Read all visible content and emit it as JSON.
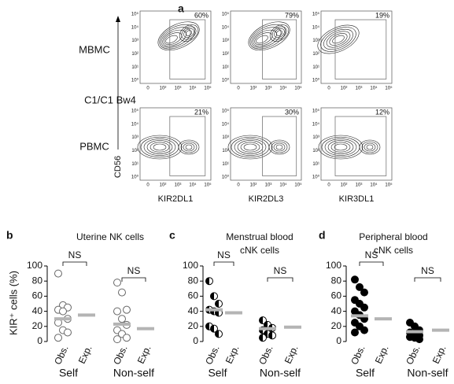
{
  "panel_a": {
    "label": "a",
    "rows": [
      "MBMC",
      "PBMC"
    ],
    "row_note": "C1/C1 Bw4",
    "columns": [
      "KIR2DL1",
      "KIR2DL3",
      "KIR3DL1"
    ],
    "y_axis": "CD56",
    "gates": [
      [
        "60%",
        "79%",
        "19%"
      ],
      [
        "21%",
        "30%",
        "12%"
      ]
    ],
    "xticks": [
      "0",
      "10²",
      "10³",
      "10⁴",
      "10⁵"
    ],
    "yticks": [
      "10⁵",
      "10⁴",
      "10³",
      "10²",
      "10¹",
      "10⁰"
    ]
  },
  "chart_data": [
    {
      "type": "dot",
      "label": "b",
      "title": [
        "Uterine NK cells"
      ],
      "ylabel": "KIR⁺ cells (%)",
      "groups": [
        "Self",
        "Non-self"
      ],
      "categories": [
        "Obs.",
        "Exp.",
        "Obs.",
        "Exp."
      ],
      "points": [
        [
          90,
          48,
          45,
          42,
          40,
          30,
          25,
          15,
          12,
          5
        ],
        [
          78,
          65,
          42,
          40,
          30,
          22,
          15,
          10,
          5,
          3
        ]
      ],
      "means": [
        30,
        23
      ],
      "expected": [
        35,
        17
      ],
      "annotations": [
        "NS",
        "NS"
      ],
      "marker": "open",
      "mean_color": "#b4b4b4",
      "ylim": [
        0,
        100
      ],
      "yticks": [
        0,
        20,
        40,
        60,
        80,
        100
      ]
    },
    {
      "type": "dot",
      "label": "c",
      "title": [
        "Menstrual blood",
        "cNK cells"
      ],
      "groups": [
        "Self",
        "Non-self"
      ],
      "categories": [
        "Obs.",
        "Exp.",
        "Obs.",
        "Exp."
      ],
      "points": [
        [
          80,
          60,
          50,
          42,
          40,
          38,
          20,
          17,
          10
        ],
        [
          28,
          22,
          18,
          15,
          10,
          8,
          5
        ]
      ],
      "means": [
        42,
        17
      ],
      "expected": [
        38,
        19
      ],
      "annotations": [
        "NS",
        "NS"
      ],
      "marker": "half",
      "mean_color": "#b4b4b4",
      "ylim": [
        0,
        100
      ],
      "yticks": [
        0,
        20,
        40,
        60,
        80,
        100
      ]
    },
    {
      "type": "dot",
      "label": "d",
      "title": [
        "Peripheral blood",
        "cNK cells"
      ],
      "groups": [
        "Self",
        "Non-self"
      ],
      "categories": [
        "Obs.",
        "Exp.",
        "Obs.",
        "Exp."
      ],
      "points": [
        [
          82,
          72,
          65,
          55,
          50,
          45,
          40,
          35,
          30,
          25,
          20,
          15,
          12
        ],
        [
          25,
          20,
          15,
          12,
          10,
          8,
          6,
          5,
          3
        ]
      ],
      "means": [
        34,
        13
      ],
      "expected": [
        30,
        15
      ],
      "annotations": [
        "NS",
        "NS"
      ],
      "marker": "filled",
      "mean_color": "#b4b4b4",
      "ylim": [
        0,
        100
      ],
      "yticks": [
        0,
        20,
        40,
        60,
        80,
        100
      ]
    }
  ]
}
